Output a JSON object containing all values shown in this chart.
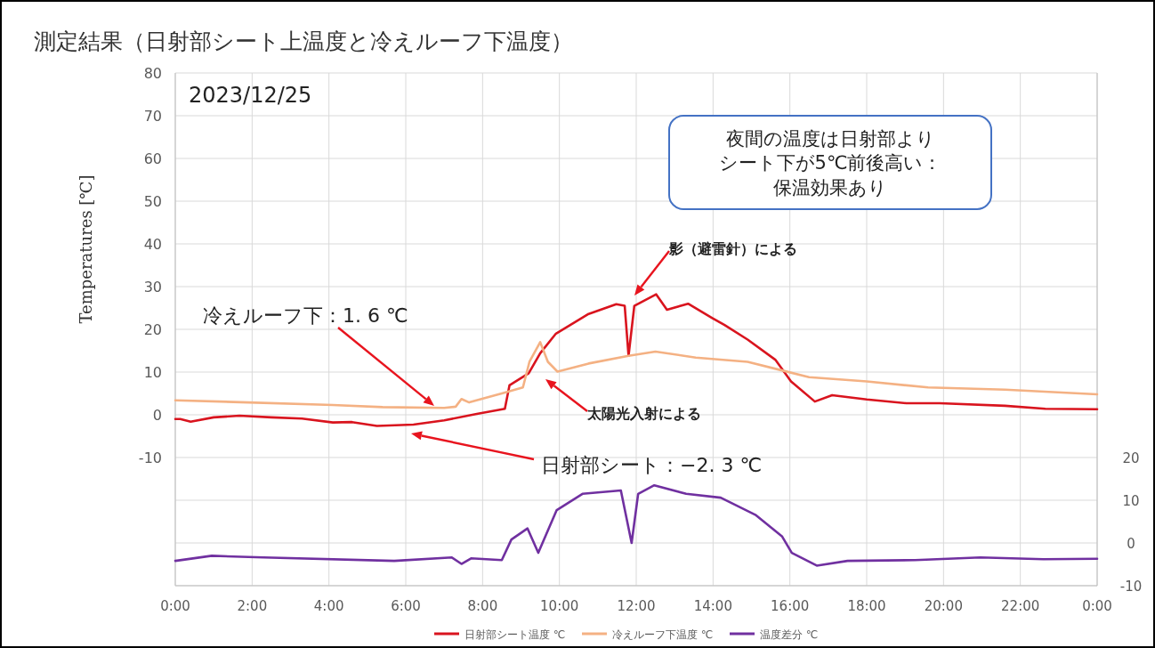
{
  "chart_data": {
    "type": "line",
    "title": "測定結果（日射部シート上温度と冷えルーフ下温度）",
    "ylabel": "Temperatures [℃]",
    "xlim": [
      0,
      24
    ],
    "xticks": [
      {
        "value": 0,
        "label": "0:00"
      },
      {
        "value": 2,
        "label": "2:00"
      },
      {
        "value": 4,
        "label": "4:00"
      },
      {
        "value": 6,
        "label": "6:00"
      },
      {
        "value": 8,
        "label": "8:00"
      },
      {
        "value": 10,
        "label": "10:00"
      },
      {
        "value": 12,
        "label": "12:00"
      },
      {
        "value": 14,
        "label": "14:00"
      },
      {
        "value": 16,
        "label": "16:00"
      },
      {
        "value": 18,
        "label": "18:00"
      },
      {
        "value": 20,
        "label": "20:00"
      },
      {
        "value": 22,
        "label": "22:00"
      },
      {
        "value": 24,
        "label": "0:00"
      }
    ],
    "ylim": [
      -40,
      80
    ],
    "yticks": [
      {
        "value": -40,
        "label": null
      },
      {
        "value": -30,
        "label": null
      },
      {
        "value": -20,
        "label": null
      },
      -10,
      0,
      10,
      20,
      30,
      40,
      50,
      60,
      70,
      80
    ],
    "y2lim": [
      -10,
      110
    ],
    "y2ticks": [
      -10,
      0,
      10,
      20
    ],
    "grid": true,
    "legend": "bottom",
    "series": [
      {
        "name": "日射部シート温度 ℃",
        "color": "#d9141e",
        "x": [
          0,
          0.13,
          0.4,
          1.0,
          1.67,
          2.5,
          3.3,
          4.1,
          4.6,
          5.25,
          6.2,
          7.0,
          7.85,
          8.58,
          8.7,
          9.2,
          9.5,
          9.91,
          10.76,
          11.48,
          11.7,
          11.8,
          11.95,
          12.52,
          12.8,
          13.35,
          13.97,
          14.3,
          14.9,
          15.62,
          16.03,
          16.65,
          17.1,
          18.0,
          19.03,
          19.9,
          21.6,
          22.65,
          24
        ],
        "values": [
          -1,
          -1,
          -1.6,
          -0.6,
          -0.2,
          -0.6,
          -0.9,
          -1.8,
          -1.7,
          -2.6,
          -2.3,
          -1.3,
          0.2,
          1.4,
          6.9,
          9.7,
          14.4,
          19,
          23.6,
          25.9,
          25.5,
          13.8,
          25.5,
          28.2,
          24.6,
          26,
          22.7,
          21,
          17.6,
          12.9,
          7.8,
          3.1,
          4.6,
          3.6,
          2.7,
          2.7,
          2.1,
          1.4,
          1.3
        ]
      },
      {
        "name": "冷えルーフ下温度 ℃",
        "color": "#f4b183",
        "x": [
          0,
          1.9,
          4.1,
          5.4,
          7.0,
          7.3,
          7.45,
          7.65,
          8.5,
          9.05,
          9.22,
          9.5,
          9.7,
          9.95,
          10.76,
          11.8,
          12.5,
          13.55,
          14.9,
          15.7,
          16.5,
          18.0,
          19.6,
          21.6,
          24
        ],
        "values": [
          3.4,
          2.9,
          2.3,
          1.8,
          1.6,
          1.9,
          3.7,
          2.9,
          5,
          6.4,
          12.4,
          17,
          12.4,
          10.1,
          12,
          13.8,
          14.8,
          13.4,
          12.4,
          10.6,
          8.8,
          7.8,
          6.4,
          5.9,
          4.8
        ]
      },
      {
        "name": "温度差分 ℃",
        "color": "#7030a0",
        "axis": "y2",
        "x": [
          0,
          0.95,
          2.3,
          5.7,
          7.2,
          7.45,
          7.7,
          8.5,
          8.75,
          9.17,
          9.45,
          9.93,
          10.6,
          11.6,
          11.88,
          12.05,
          12.47,
          13.3,
          14.2,
          15.1,
          15.8,
          16.05,
          16.7,
          17.5,
          19.26,
          20.96,
          22.6,
          24
        ],
        "values": [
          -4.2,
          -3,
          -3.4,
          -4.2,
          -3.4,
          -4.9,
          -3.6,
          -4,
          0.8,
          3.4,
          -2.3,
          7.7,
          11.5,
          12.3,
          0,
          11.5,
          13.5,
          11.5,
          10.6,
          6.6,
          1.5,
          -2.3,
          -5.3,
          -4.2,
          -4,
          -3.4,
          -3.8,
          -3.7
        ]
      }
    ],
    "annotations": [
      "2023/12/25",
      "夜間の温度は日射部よりシート下が5℃前後高い：保温効果あり",
      "冷えルーフ下：1. 6 ℃",
      "日射部シート：−2. 3 ℃",
      "影（避雷針）による",
      "太陽光入射による"
    ]
  }
}
